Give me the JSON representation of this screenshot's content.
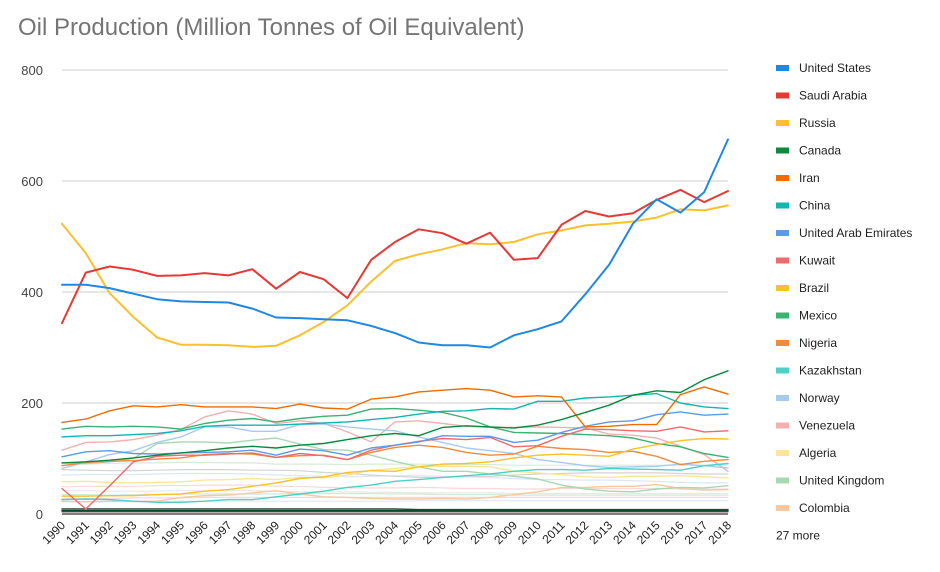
{
  "chart_data": {
    "type": "line",
    "title": "Oil Production (Million Tonnes of Oil Equivalent)",
    "xlabel": "",
    "ylabel": "",
    "ylim": [
      0,
      800
    ],
    "yticks": [
      0,
      200,
      400,
      600,
      800
    ],
    "grid": true,
    "legend_position": "right",
    "x": [
      "1990",
      "1991",
      "1992",
      "1993",
      "1994",
      "1995",
      "1996",
      "1997",
      "1998",
      "1999",
      "2000",
      "2001",
      "2002",
      "2003",
      "2004",
      "2005",
      "2006",
      "2007",
      "2008",
      "2009",
      "2010",
      "2011",
      "2012",
      "2013",
      "2014",
      "2015",
      "2016",
      "2017",
      "2018"
    ],
    "more_label": "27 more",
    "series": [
      {
        "name": "United States",
        "color": "#1e88e5",
        "width": 2,
        "values": [
          413,
          413,
          407,
          397,
          387,
          383,
          382,
          381,
          370,
          354,
          353,
          351,
          349,
          339,
          326,
          309,
          304,
          304,
          300,
          322,
          333,
          347,
          396,
          449,
          523,
          567,
          543,
          580,
          675
        ]
      },
      {
        "name": "Saudi Arabia",
        "color": "#e53935",
        "width": 2,
        "values": [
          344,
          435,
          446,
          440,
          429,
          430,
          434,
          430,
          441,
          406,
          436,
          423,
          389,
          458,
          490,
          513,
          506,
          487,
          507,
          458,
          461,
          521,
          546,
          536,
          542,
          566,
          584,
          562,
          582
        ]
      },
      {
        "name": "Russia",
        "color": "#fbc02d",
        "width": 2,
        "values": [
          523,
          470,
          398,
          355,
          318,
          305,
          305,
          304,
          301,
          303,
          322,
          346,
          376,
          419,
          456,
          468,
          477,
          488,
          486,
          490,
          504,
          511,
          520,
          523,
          527,
          534,
          549,
          547,
          556
        ]
      },
      {
        "name": "Canada",
        "color": "#0b8a3e",
        "width": 1.4,
        "values": [
          92,
          94,
          97,
          101,
          106,
          110,
          114,
          119,
          122,
          119,
          124,
          127,
          134,
          141,
          145,
          141,
          156,
          159,
          157,
          155,
          160,
          170,
          183,
          196,
          214,
          222,
          219,
          242,
          258
        ]
      },
      {
        "name": "Iran",
        "color": "#ef6c00",
        "width": 1.4,
        "values": [
          165,
          171,
          186,
          195,
          193,
          197,
          193,
          193,
          193,
          190,
          198,
          191,
          189,
          207,
          211,
          220,
          223,
          226,
          223,
          211,
          213,
          211,
          157,
          158,
          161,
          161,
          215,
          229,
          216
        ]
      },
      {
        "name": "China",
        "color": "#12b5b0",
        "width": 1.4,
        "values": [
          139,
          141,
          141,
          143,
          145,
          150,
          158,
          160,
          160,
          160,
          162,
          164,
          166,
          170,
          174,
          180,
          185,
          186,
          190,
          189,
          203,
          203,
          209,
          211,
          214,
          217,
          200,
          193,
          190
        ]
      },
      {
        "name": "United Arab Emirates",
        "color": "#5a9be6",
        "width": 1.4,
        "values": [
          103,
          112,
          114,
          109,
          108,
          110,
          111,
          112,
          115,
          106,
          117,
          114,
          106,
          119,
          124,
          130,
          141,
          140,
          140,
          129,
          133,
          147,
          158,
          166,
          168,
          179,
          184,
          178,
          180
        ]
      },
      {
        "name": "Kuwait",
        "color": "#ef6b6b",
        "width": 1.4,
        "values": [
          46,
          9,
          51,
          94,
          104,
          106,
          106,
          108,
          110,
          102,
          109,
          105,
          98,
          115,
          124,
          131,
          136,
          134,
          138,
          121,
          123,
          140,
          153,
          152,
          150,
          149,
          157,
          148,
          150
        ]
      },
      {
        "name": "Brazil",
        "color": "#fbc02d",
        "width": 1.4,
        "values": [
          32,
          32,
          33,
          33,
          35,
          36,
          41,
          44,
          50,
          56,
          64,
          67,
          75,
          78,
          77,
          85,
          90,
          91,
          94,
          101,
          106,
          108,
          106,
          104,
          117,
          125,
          132,
          136,
          135
        ]
      },
      {
        "name": "Mexico",
        "color": "#3cb371",
        "width": 1.4,
        "values": [
          153,
          158,
          157,
          158,
          157,
          153,
          163,
          169,
          172,
          166,
          172,
          176,
          178,
          189,
          190,
          187,
          183,
          173,
          157,
          147,
          146,
          145,
          143,
          141,
          137,
          127,
          121,
          109,
          102
        ]
      },
      {
        "name": "Nigeria",
        "color": "#f08a3c",
        "width": 1.4,
        "values": [
          87,
          93,
          95,
          96,
          99,
          101,
          107,
          109,
          108,
          102,
          105,
          106,
          98,
          111,
          120,
          124,
          120,
          111,
          106,
          108,
          122,
          118,
          116,
          111,
          113,
          104,
          89,
          95,
          98
        ]
      },
      {
        "name": "Kazakhstan",
        "color": "#4dd0c8",
        "width": 1.4,
        "values": [
          26,
          27,
          26,
          23,
          21,
          21,
          23,
          26,
          26,
          31,
          36,
          41,
          48,
          52,
          59,
          62,
          66,
          69,
          72,
          77,
          80,
          80,
          79,
          82,
          81,
          80,
          79,
          87,
          91
        ]
      },
      {
        "name": "Norway",
        "color": "#a6cbf0",
        "width": 1.4,
        "values": [
          82,
          94,
          107,
          114,
          129,
          139,
          157,
          157,
          149,
          149,
          161,
          162,
          157,
          153,
          150,
          139,
          129,
          119,
          114,
          109,
          98,
          93,
          87,
          84,
          85,
          86,
          90,
          87,
          83
        ]
      },
      {
        "name": "Venezuela",
        "color": "#f4b0b0",
        "width": 1.4,
        "values": [
          115,
          129,
          130,
          134,
          142,
          152,
          175,
          186,
          180,
          163,
          168,
          163,
          148,
          130,
          166,
          168,
          163,
          158,
          156,
          156,
          157,
          156,
          155,
          144,
          142,
          137,
          122,
          107,
          77
        ]
      },
      {
        "name": "Algeria",
        "color": "#fbe59a",
        "width": 1.4,
        "values": [
          58,
          59,
          57,
          56,
          57,
          58,
          61,
          62,
          64,
          62,
          66,
          65,
          70,
          79,
          82,
          86,
          86,
          86,
          85,
          77,
          74,
          71,
          67,
          66,
          68,
          68,
          69,
          67,
          65
        ]
      },
      {
        "name": "United Kingdom",
        "color": "#a8d8b0",
        "width": 1.4,
        "values": [
          92,
          91,
          94,
          100,
          127,
          130,
          130,
          128,
          133,
          137,
          126,
          116,
          115,
          106,
          95,
          85,
          77,
          77,
          72,
          68,
          63,
          52,
          45,
          41,
          40,
          45,
          48,
          47,
          51
        ]
      },
      {
        "name": "Colombia",
        "color": "#f9c8a0",
        "width": 1.4,
        "values": [
          23,
          22,
          23,
          23,
          23,
          30,
          33,
          34,
          38,
          42,
          36,
          31,
          30,
          28,
          27,
          27,
          28,
          27,
          30,
          35,
          40,
          48,
          48,
          50,
          50,
          53,
          46,
          43,
          44
        ]
      },
      {
        "name": "",
        "color": "#d7ebd9",
        "width": 1.2,
        "values": [
          88,
          90,
          91,
          92,
          92,
          93,
          93,
          92,
          92,
          90,
          90,
          90,
          89,
          90,
          90,
          90,
          89,
          89,
          89,
          88,
          88,
          88,
          88,
          88,
          88,
          88,
          88,
          88,
          88
        ]
      },
      {
        "name": "",
        "color": "#d3d3d3",
        "width": 1.2,
        "values": [
          80,
          79,
          78,
          78,
          79,
          80,
          80,
          80,
          79,
          79,
          78,
          75,
          73,
          70,
          68,
          66,
          66,
          67,
          68,
          70,
          72,
          73,
          74,
          74,
          74,
          74,
          73,
          72,
          72
        ]
      },
      {
        "name": "",
        "color": "#dbe7f6",
        "width": 1.2,
        "values": [
          70,
          71,
          71,
          71,
          72,
          73,
          73,
          73,
          72,
          70,
          69,
          68,
          67,
          68,
          69,
          69,
          68,
          67,
          66,
          64,
          62,
          62,
          61,
          61,
          60,
          59,
          57,
          56,
          56
        ]
      },
      {
        "name": "",
        "color": "#f6dada",
        "width": 1.2,
        "values": [
          49,
          50,
          50,
          50,
          51,
          51,
          52,
          52,
          52,
          50,
          50,
          48,
          47,
          47,
          47,
          48,
          47,
          46,
          46,
          45,
          45,
          46,
          46,
          46,
          46,
          46,
          45,
          45,
          45
        ]
      },
      {
        "name": "",
        "color": "#e8e8e8",
        "width": 1.2,
        "values": [
          42,
          42,
          41,
          41,
          41,
          42,
          42,
          42,
          42,
          41,
          40,
          40,
          40,
          39,
          39,
          38,
          38,
          38,
          38,
          37,
          37,
          37,
          37,
          37,
          37,
          37,
          37,
          37,
          37
        ]
      },
      {
        "name": "",
        "color": "#d1ecd1",
        "width": 1.2,
        "values": [
          35,
          35,
          34,
          35,
          35,
          36,
          36,
          36,
          36,
          36,
          37,
          37,
          37,
          37,
          36,
          36,
          35,
          35,
          35,
          34,
          34,
          34,
          34,
          34,
          34,
          34,
          34,
          34,
          34
        ]
      },
      {
        "name": "",
        "color": "#ecd9ec",
        "width": 1.2,
        "values": [
          28,
          28,
          28,
          29,
          29,
          29,
          30,
          30,
          30,
          30,
          30,
          30,
          30,
          30,
          30,
          30,
          30,
          30,
          30,
          30,
          30,
          30,
          30,
          30,
          30,
          30,
          30,
          30,
          30
        ]
      },
      {
        "name": "",
        "color": "#ddeaf7",
        "width": 1.2,
        "values": [
          22,
          22,
          22,
          22,
          22,
          23,
          23,
          23,
          23,
          23,
          23,
          23,
          23,
          23,
          23,
          24,
          24,
          24,
          24,
          24,
          24,
          24,
          24,
          24,
          24,
          24,
          24,
          24,
          24
        ]
      },
      {
        "name": "",
        "color": "#3a3a3a",
        "width": 1.4,
        "values": [
          9,
          9,
          9,
          9,
          9,
          9,
          9,
          9,
          9,
          9,
          9,
          9,
          9,
          9,
          9,
          8,
          8,
          8,
          8,
          8,
          8,
          8,
          8,
          8,
          8,
          8,
          8,
          8,
          8
        ]
      },
      {
        "name": "",
        "color": "#0a4a2a",
        "width": 1.4,
        "values": [
          6,
          6,
          6,
          6,
          6,
          6,
          6,
          6,
          6,
          6,
          6,
          6,
          6,
          6,
          6,
          6,
          6,
          6,
          6,
          6,
          6,
          6,
          6,
          6,
          6,
          6,
          6,
          6,
          6
        ]
      },
      {
        "name": "",
        "color": "#5a2a2a",
        "width": 1.2,
        "values": [
          4,
          4,
          4,
          4,
          4,
          4,
          4,
          4,
          4,
          4,
          4,
          4,
          4,
          4,
          4,
          4,
          4,
          4,
          4,
          4,
          4,
          4,
          4,
          4,
          4,
          4,
          4,
          4,
          4
        ]
      }
    ]
  }
}
